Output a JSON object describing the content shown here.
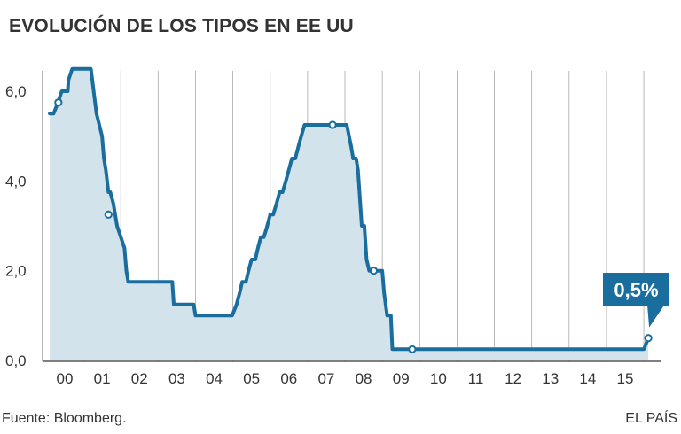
{
  "title": "EVOLUCIÓN DE LOS TIPOS EN EE UU",
  "source": "Fuente: Bloomberg.",
  "brand": "EL PAÍS",
  "colors": {
    "line": "#1a6e9e",
    "fill": "#d3e3ec",
    "callout": "#1a6e9e",
    "callout_text": "#ffffff",
    "grid": "#6e6e6e",
    "text": "#333333"
  },
  "chart_data": {
    "type": "area",
    "title": "EVOLUCIÓN DE LOS TIPOS EN EE UU",
    "xlabel": "",
    "ylabel": "",
    "ylim": [
      0,
      6.5
    ],
    "yticks": [
      "0,0",
      "2,0",
      "4,0",
      "6,0"
    ],
    "ytick_values": [
      0,
      2,
      4,
      6
    ],
    "xtick_labels": [
      "00",
      "01",
      "02",
      "03",
      "04",
      "05",
      "06",
      "07",
      "08",
      "09",
      "10",
      "11",
      "12",
      "13",
      "14",
      "15"
    ],
    "xlim": [
      1999.55,
      2015.9
    ],
    "grid": "vertical",
    "series": [
      {
        "x": [
          1999.6,
          1999.7,
          1999.82,
          1999.92,
          2000.08,
          2000.1,
          2000.2,
          2000.38,
          2000.55,
          2000.58,
          2000.65,
          2000.7,
          2000.85,
          2001.0,
          2001.05,
          2001.1,
          2001.17,
          2001.22,
          2001.3,
          2001.35,
          2001.4,
          2001.6,
          2001.65,
          2001.7,
          2001.85,
          2001.9,
          2002.88,
          2002.92,
          2003.45,
          2003.5,
          2004.48,
          2004.6,
          2004.68,
          2004.75,
          2004.85,
          2004.92,
          2005.0,
          2005.1,
          2005.17,
          2005.25,
          2005.33,
          2005.42,
          2005.5,
          2005.58,
          2005.67,
          2005.75,
          2005.83,
          2005.92,
          2006.0,
          2006.08,
          2006.17,
          2006.25,
          2006.33,
          2006.42,
          2006.5,
          2007.33,
          2007.55,
          2007.67,
          2007.72,
          2007.8,
          2007.85,
          2007.95,
          2008.02,
          2008.08,
          2008.15,
          2008.25,
          2008.3,
          2008.35,
          2008.5,
          2008.55,
          2008.63,
          2008.73,
          2008.77,
          2008.85,
          2009.3,
          2015.5,
          2015.62
        ],
        "values": [
          5.5,
          5.5,
          5.75,
          6.0,
          6.0,
          6.25,
          6.5,
          6.5,
          6.5,
          6.5,
          6.5,
          6.5,
          5.5,
          5.0,
          4.5,
          4.25,
          3.75,
          3.75,
          3.5,
          3.25,
          3.0,
          2.5,
          2.0,
          1.75,
          1.75,
          1.75,
          1.75,
          1.25,
          1.25,
          1.0,
          1.0,
          1.25,
          1.5,
          1.75,
          1.75,
          2.0,
          2.25,
          2.25,
          2.5,
          2.75,
          2.75,
          3.0,
          3.25,
          3.25,
          3.5,
          3.75,
          3.75,
          4.0,
          4.25,
          4.5,
          4.5,
          4.75,
          5.0,
          5.25,
          5.25,
          5.25,
          5.25,
          4.75,
          4.5,
          4.5,
          4.25,
          3.0,
          3.0,
          2.25,
          2.0,
          2.0,
          2.0,
          2.0,
          2.0,
          1.5,
          1.0,
          1.0,
          0.25,
          0.25,
          0.25,
          0.25,
          0.5
        ]
      }
    ],
    "highlight_points": [
      {
        "x": 1999.83,
        "y": 5.75
      },
      {
        "x": 2001.17,
        "y": 3.25
      },
      {
        "x": 2007.17,
        "y": 5.25
      },
      {
        "x": 2008.27,
        "y": 2.0
      },
      {
        "x": 2009.3,
        "y": 0.25
      },
      {
        "x": 2015.62,
        "y": 0.5
      }
    ],
    "annotation": {
      "text": "0,5%",
      "x": 2015.62,
      "y": 0.5
    }
  }
}
